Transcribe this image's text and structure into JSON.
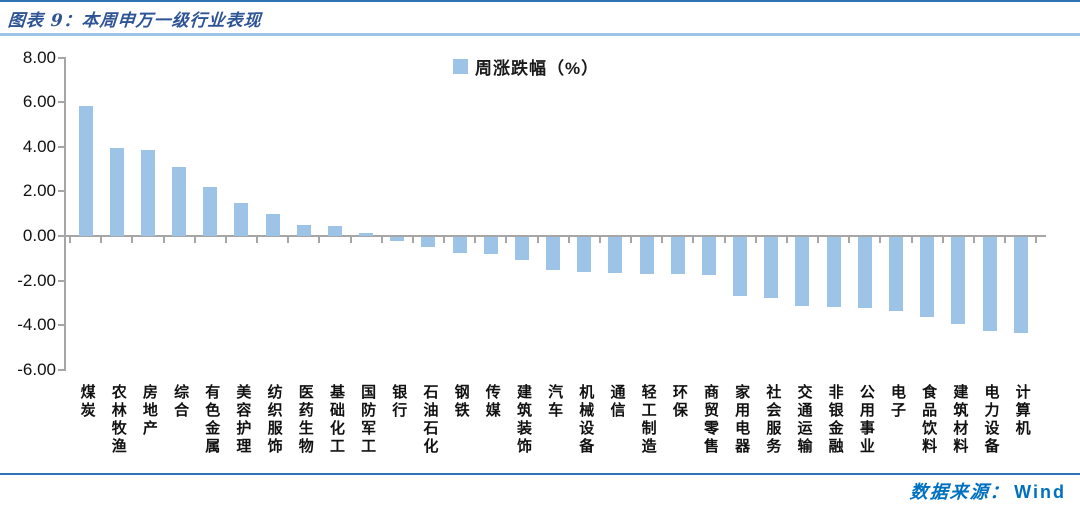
{
  "header": {
    "title": "图表 9：本周申万一级行业表现"
  },
  "legend": {
    "label": "周涨跌幅（%）",
    "swatch_color": "#9DC3E6"
  },
  "footer": {
    "source_label": "数据来源：",
    "source_value": "Wind"
  },
  "colors": {
    "bar": "#9DC3E6",
    "axis": "#A6A6A6",
    "title_text": "#2F5496",
    "top_rule": "#2E74B5",
    "title_rule": "#9DC3E6",
    "footer_rule": "#2E74B5",
    "source_text": "#0070C0"
  },
  "chart_data": {
    "type": "bar",
    "title": "图表 9：本周申万一级行业表现",
    "series": [
      {
        "name": "周涨跌幅（%）",
        "values": [
          5.85,
          3.95,
          3.85,
          3.1,
          2.2,
          1.5,
          1.0,
          0.5,
          0.45,
          0.15,
          -0.2,
          -0.45,
          -0.7,
          -0.75,
          -1.05,
          -1.5,
          -1.55,
          -1.6,
          -1.65,
          -1.68,
          -1.72,
          -2.65,
          -2.75,
          -3.1,
          -3.15,
          -3.2,
          -3.3,
          -3.6,
          -3.9,
          -4.2,
          -4.3
        ]
      }
    ],
    "categories": [
      "煤炭",
      "农林牧渔",
      "房地产",
      "综合",
      "有色金属",
      "美容护理",
      "纺织服饰",
      "医药生物",
      "基础化工",
      "国防军工",
      "银行",
      "石油石化",
      "钢铁",
      "传媒",
      "建筑装饰",
      "汽车",
      "机械设备",
      "通信",
      "轻工制造",
      "环保",
      "商贸零售",
      "家用电器",
      "社会服务",
      "交通运输",
      "非银金融",
      "公用事业",
      "电子",
      "食品饮料",
      "建筑材料",
      "电力设备",
      "计算机"
    ],
    "xlabel": "",
    "ylabel": "",
    "ylim": [
      -6,
      8
    ],
    "yticks": [
      8,
      6,
      4,
      2,
      0,
      -2,
      -4,
      -6
    ],
    "ytick_decimals": 2,
    "grid": false,
    "legend_position": "top-center",
    "bar_color": "#9DC3E6",
    "axis_color": "#A6A6A6",
    "source": "Wind"
  }
}
